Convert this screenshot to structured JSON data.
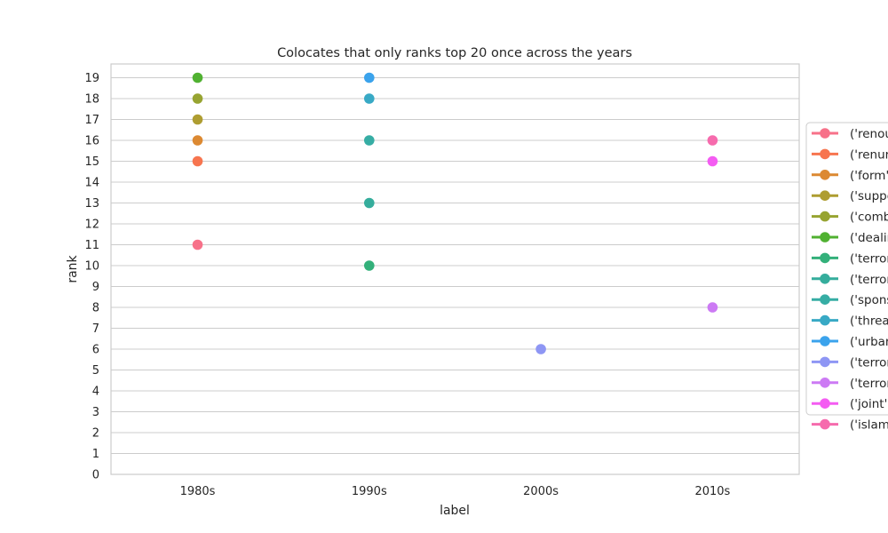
{
  "chart_data": {
    "type": "scatter",
    "title": "Colocates that only ranks top 20 once across the years",
    "xlabel": "label",
    "ylabel": "rank",
    "categories": [
      "1980s",
      "1990s",
      "2000s",
      "2010s"
    ],
    "ylim": [
      0,
      19
    ],
    "yticks": [
      "0",
      "1",
      "2",
      "3",
      "4",
      "5",
      "6",
      "7",
      "8",
      "9",
      "10",
      "11",
      "12",
      "13",
      "14",
      "15",
      "16",
      "17",
      "18",
      "19"
    ],
    "grid": "horizontal",
    "legend_position": "right",
    "series": [
      {
        "name": "('renou",
        "color": "#f77189",
        "points": [
          {
            "x": "1980s",
            "y": 11
          }
        ]
      },
      {
        "name": "('renur",
        "color": "#f7754f",
        "points": [
          {
            "x": "1980s",
            "y": 15
          }
        ]
      },
      {
        "name": "('form',",
        "color": "#dc8932",
        "points": [
          {
            "x": "1980s",
            "y": 16
          }
        ]
      },
      {
        "name": "('suppo",
        "color": "#ae9d31",
        "points": [
          {
            "x": "1980s",
            "y": 17
          }
        ]
      },
      {
        "name": "('comb",
        "color": "#97a431",
        "points": [
          {
            "x": "1980s",
            "y": 18
          }
        ]
      },
      {
        "name": "('dealin",
        "color": "#50b131",
        "points": [
          {
            "x": "1980s",
            "y": 19
          }
        ]
      },
      {
        "name": "('terror",
        "color": "#33b07a",
        "points": [
          {
            "x": "1990s",
            "y": 10
          }
        ]
      },
      {
        "name": "('terror",
        "color": "#35ad9c",
        "points": [
          {
            "x": "1990s",
            "y": 13
          }
        ]
      },
      {
        "name": "('spons",
        "color": "#36ada4",
        "points": [
          {
            "x": "1990s",
            "y": 16
          }
        ]
      },
      {
        "name": "('threa",
        "color": "#38a9c5",
        "points": [
          {
            "x": "1990s",
            "y": 18
          }
        ]
      },
      {
        "name": "('urbar",
        "color": "#3ba3ec",
        "points": [
          {
            "x": "1990s",
            "y": 19
          }
        ]
      },
      {
        "name": "('terror",
        "color": "#8e96f4",
        "points": [
          {
            "x": "2000s",
            "y": 6
          }
        ]
      },
      {
        "name": "('terror",
        "color": "#cc7af4",
        "points": [
          {
            "x": "2010s",
            "y": 8
          }
        ]
      },
      {
        "name": "('joint',",
        "color": "#f45cf2",
        "points": [
          {
            "x": "2010s",
            "y": 15
          }
        ]
      },
      {
        "name": "('islam",
        "color": "#f66bad",
        "points": [
          {
            "x": "2010s",
            "y": 16
          }
        ]
      }
    ]
  }
}
